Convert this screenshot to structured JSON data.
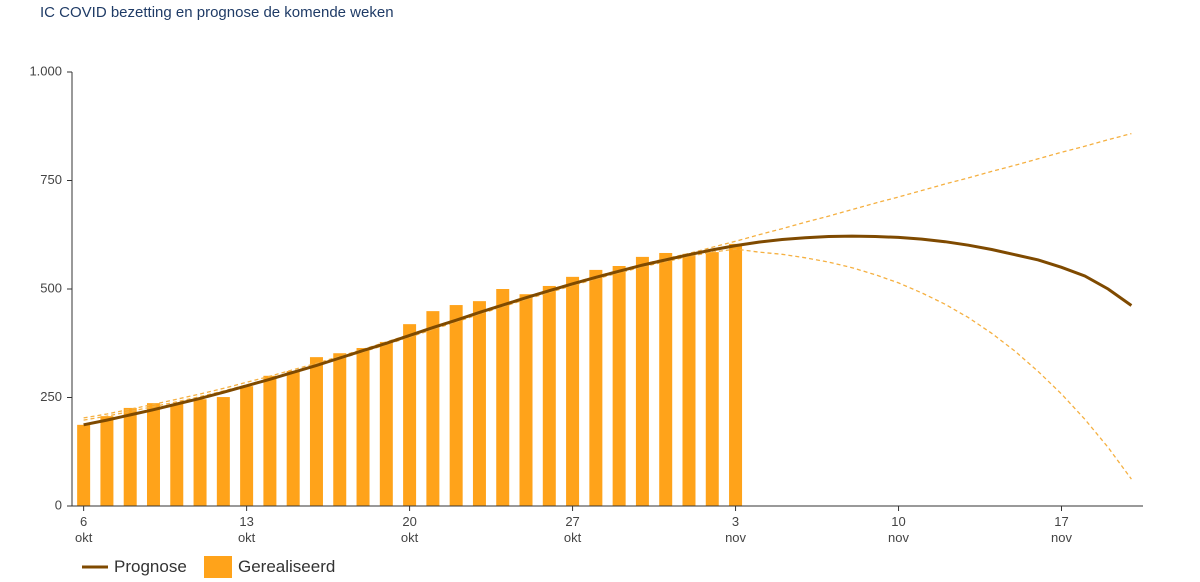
{
  "chart_data": {
    "type": "bar-line",
    "title": "IC COVID bezetting en prognose de komende weken",
    "categories": [
      "6\nokt",
      null,
      null,
      null,
      null,
      null,
      null,
      "13\nokt",
      null,
      null,
      null,
      null,
      null,
      null,
      "20\nokt",
      null,
      null,
      null,
      null,
      null,
      null,
      "27\nokt",
      null,
      null,
      null,
      null,
      null,
      null,
      "3\nnov",
      null,
      null,
      null,
      null,
      null,
      null,
      "10\nnov",
      null,
      null,
      null,
      null,
      null,
      null,
      "17\nnov",
      null,
      null,
      null
    ],
    "series": [
      {
        "name": "Gerealiseerd",
        "kind": "bar",
        "color": "#ffa31a",
        "values": [
          187,
          207,
          226,
          237,
          235,
          246,
          251,
          276,
          300,
          311,
          343,
          352,
          364,
          378,
          419,
          449,
          463,
          472,
          500,
          488,
          507,
          528,
          544,
          553,
          574,
          583,
          581,
          585,
          604,
          null,
          null,
          null,
          null,
          null,
          null,
          null,
          null,
          null,
          null,
          null,
          null,
          null,
          null,
          null,
          null,
          null
        ]
      },
      {
        "kind": "dashed",
        "color": "#f5b041",
        "values": [
          203,
          212,
          223,
          234,
          246,
          258,
          271,
          285,
          299,
          314,
          329,
          345,
          361,
          378,
          395,
          413,
          430,
          448,
          465,
          482,
          498,
          514,
          529,
          543,
          557,
          570,
          582,
          596,
          610,
          625,
          639,
          654,
          668,
          683,
          698,
          712,
          727,
          742,
          756,
          771,
          785,
          800,
          815,
          829,
          844,
          858
        ]
      },
      {
        "kind": "dashed",
        "color": "#f5b041",
        "values": [
          198,
          207,
          218,
          229,
          240,
          252,
          265,
          279,
          293,
          308,
          323,
          339,
          355,
          372,
          389,
          407,
          424,
          442,
          459,
          476,
          492,
          508,
          523,
          537,
          551,
          563,
          575,
          585,
          592,
          585,
          580,
          572,
          562,
          549,
          533,
          514,
          491,
          465,
          434,
          398,
          357,
          310,
          258,
          200,
          135,
          62
        ]
      },
      {
        "name": "Prognose",
        "kind": "line",
        "color": "#7f4a00",
        "values": [
          187,
          198,
          210,
          222,
          235,
          248,
          262,
          277,
          292,
          308,
          324,
          341,
          358,
          375,
          393,
          411,
          428,
          446,
          463,
          480,
          496,
          512,
          527,
          541,
          555,
          567,
          579,
          590,
          600,
          608,
          614,
          618,
          621,
          622,
          621,
          619,
          615,
          609,
          601,
          591,
          579,
          567,
          550,
          530,
          500,
          462
        ]
      }
    ],
    "ylim": [
      0,
      1000
    ],
    "yticks": [
      0,
      250,
      500,
      750,
      {
        "value": 1000,
        "label": "1.000"
      }
    ]
  }
}
